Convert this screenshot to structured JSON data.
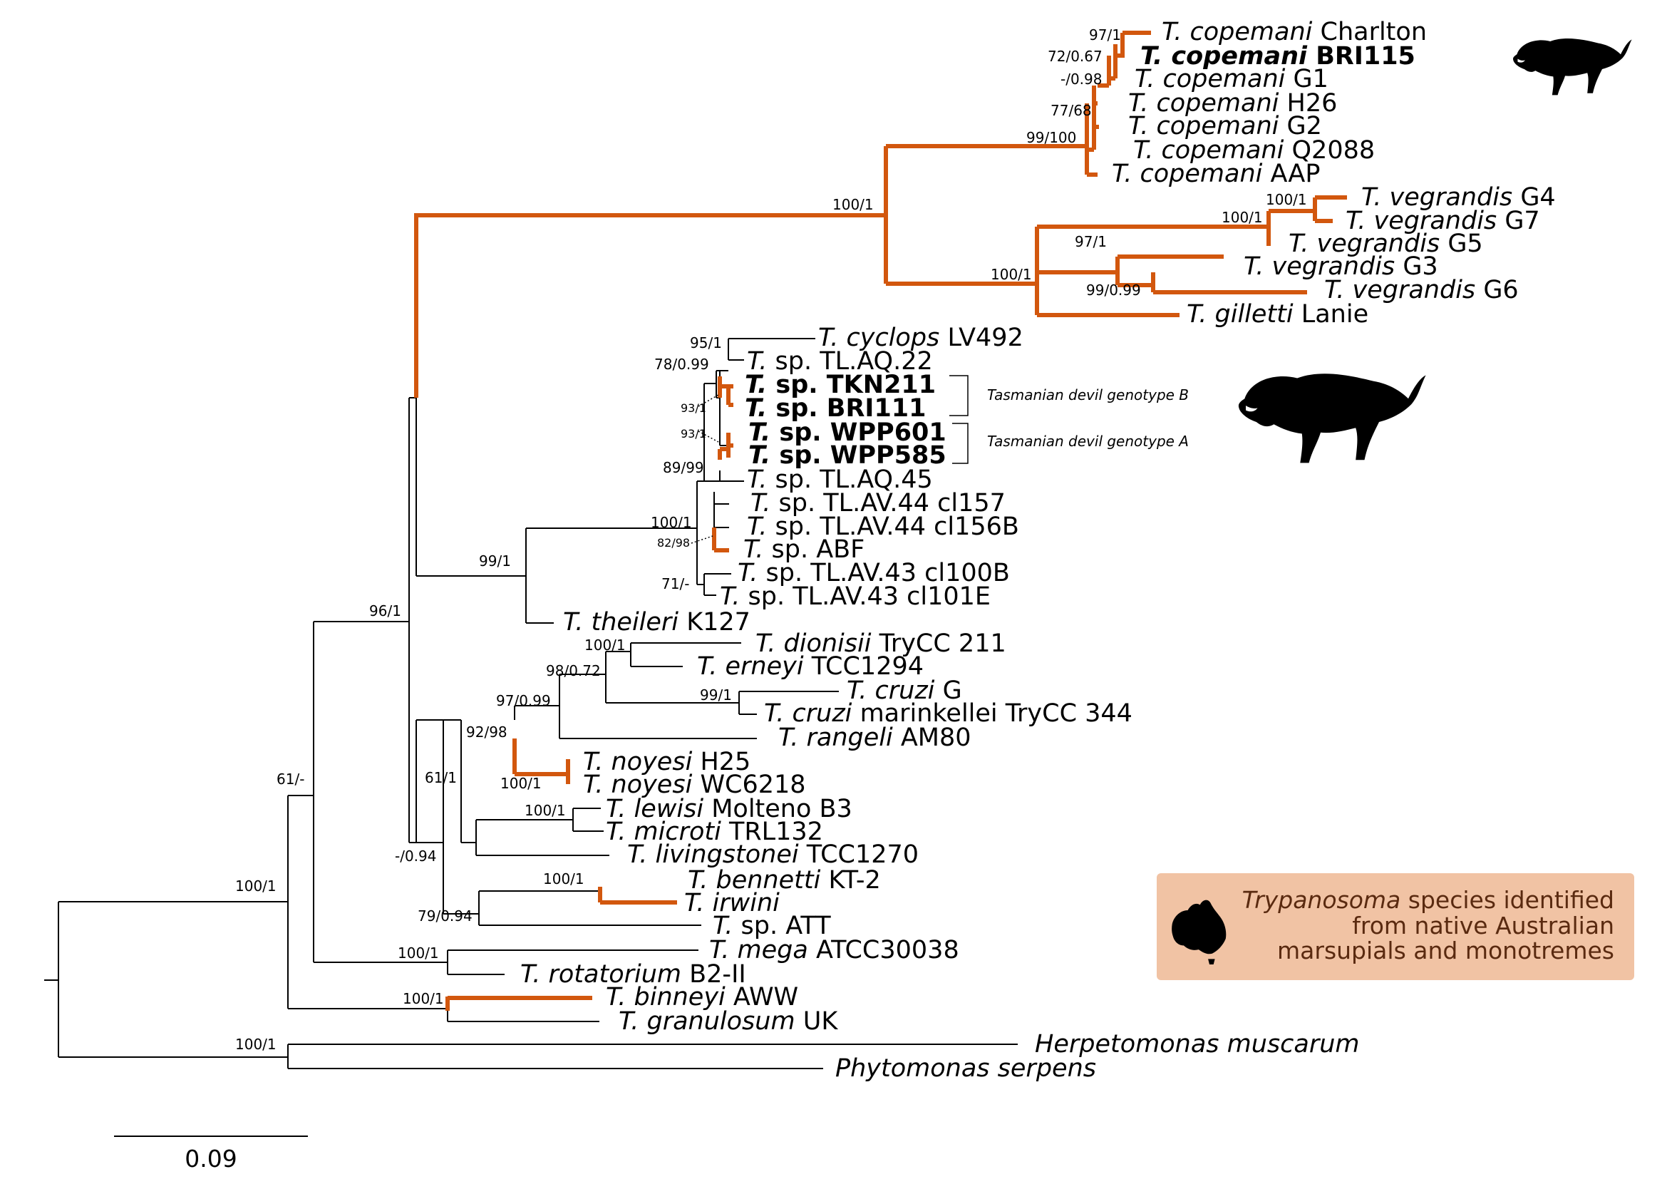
{
  "colors": {
    "highlight": "#d2570e",
    "legend_bg": "#f1c3a4",
    "legend_text": "#5a2a10",
    "branch": "#000000"
  },
  "taxa": {
    "cop_charlton": {
      "genus": "T.",
      "species": "copemani",
      "strain": "Charlton"
    },
    "cop_bri115": {
      "genus": "T.",
      "species": "copemani",
      "strain": "BRI115"
    },
    "cop_g1": {
      "genus": "T.",
      "species": "copemani",
      "strain": "G1"
    },
    "cop_h26": {
      "genus": "T.",
      "species": "copemani",
      "strain": "H26"
    },
    "cop_g2": {
      "genus": "T.",
      "species": "copemani",
      "strain": "G2"
    },
    "cop_q2088": {
      "genus": "T.",
      "species": "copemani",
      "strain": "Q2088"
    },
    "cop_aap": {
      "genus": "T.",
      "species": "copemani",
      "strain": "AAP"
    },
    "veg_g4": {
      "genus": "T.",
      "species": "vegrandis",
      "strain": "G4"
    },
    "veg_g7": {
      "genus": "T.",
      "species": "vegrandis",
      "strain": "G7"
    },
    "veg_g5": {
      "genus": "T.",
      "species": "vegrandis",
      "strain": "G5"
    },
    "veg_g3": {
      "genus": "T.",
      "species": "vegrandis",
      "strain": "G3"
    },
    "veg_g6": {
      "genus": "T.",
      "species": "vegrandis",
      "strain": "G6"
    },
    "gil_lanie": {
      "genus": "T.",
      "species": "gilletti",
      "strain": "Lanie"
    },
    "cyc_lv492": {
      "genus": "T.",
      "species": "cyclops",
      "strain": "LV492"
    },
    "sp_tlaq22": {
      "genus": "T.",
      "species": "",
      "strain": "sp. TL.AQ.22"
    },
    "sp_tkn211": {
      "genus": "T.",
      "species": "",
      "strain": "sp. TKN211"
    },
    "sp_bri111": {
      "genus": "T.",
      "species": "",
      "strain": "sp. BRI111"
    },
    "sp_wpp601": {
      "genus": "T.",
      "species": "",
      "strain": "sp. WPP601"
    },
    "sp_wpp585": {
      "genus": "T.",
      "species": "",
      "strain": "sp. WPP585"
    },
    "sp_tlaq45": {
      "genus": "T.",
      "species": "",
      "strain": "sp. TL.AQ.45"
    },
    "sp_tlav44_157": {
      "genus": "T.",
      "species": "",
      "strain": "sp. TL.AV.44 cl157"
    },
    "sp_tlav44_156b": {
      "genus": "T.",
      "species": "",
      "strain": "sp. TL.AV.44 cl156B"
    },
    "sp_abf": {
      "genus": "T.",
      "species": "",
      "strain": "sp. ABF"
    },
    "sp_tlav43_100b": {
      "genus": "T.",
      "species": "",
      "strain": "sp. TL.AV.43 cl100B"
    },
    "sp_tlav43_101e": {
      "genus": "T.",
      "species": "",
      "strain": "sp. TL.AV.43 cl101E"
    },
    "the_k127": {
      "genus": "T.",
      "species": "theileri",
      "strain": "K127"
    },
    "dio_trycc211": {
      "genus": "T.",
      "species": "dionisii",
      "strain": "TryCC 211"
    },
    "ern_tcc1294": {
      "genus": "T.",
      "species": "erneyi",
      "strain": "TCC1294"
    },
    "cru_g": {
      "genus": "T.",
      "species": "cruzi",
      "strain": "G"
    },
    "cru_mar": {
      "genus": "T.",
      "species": "cruzi",
      "strain": "marinkellei TryCC 344"
    },
    "ran_am80": {
      "genus": "T.",
      "species": "rangeli",
      "strain": "AM80"
    },
    "noy_h25": {
      "genus": "T.",
      "species": "noyesi",
      "strain": "H25"
    },
    "noy_wc6218": {
      "genus": "T.",
      "species": "noyesi",
      "strain": "WC6218"
    },
    "lew_molteno": {
      "genus": "T.",
      "species": "lewisi",
      "strain": "Molteno B3"
    },
    "mic_trl132": {
      "genus": "T.",
      "species": "microti",
      "strain": "TRL132"
    },
    "liv_tcc1270": {
      "genus": "T.",
      "species": "livingstonei",
      "strain": "TCC1270"
    },
    "ben_kt2": {
      "genus": "T.",
      "species": "bennetti",
      "strain": "KT-2"
    },
    "irw": {
      "genus": "T.",
      "species": "irwini",
      "strain": ""
    },
    "sp_att": {
      "genus": "T.",
      "species": "",
      "strain": "sp. ATT"
    },
    "meg_atcc": {
      "genus": "T.",
      "species": "mega",
      "strain": "ATCC30038"
    },
    "rot_b2ii": {
      "genus": "T.",
      "species": "rotatorium",
      "strain": "B2-II"
    },
    "bin_aww": {
      "genus": "T.",
      "species": "binneyi",
      "strain": "AWW"
    },
    "gra_uk": {
      "genus": "T.",
      "species": "granulosum",
      "strain": "UK"
    },
    "her_mus": {
      "genus": "Herpetomonas",
      "species": "muscarum",
      "strain": ""
    },
    "phy_ser": {
      "genus": "Phytomonas",
      "species": "serpens",
      "strain": ""
    }
  },
  "support": {
    "cop_charlton_bri115": "97/1",
    "cop_a": "72/0.67",
    "cop_g1": "-/0.98",
    "cop_h26": "77/68",
    "copemani_clade": "99/100",
    "cop_veg": "100/1",
    "veg_g4_g7": "100/1",
    "veg_g5": "100/1",
    "veg_core": "97/1",
    "veg_g3_g6": "99/0.99",
    "veg_gil": "100/1",
    "cyc_tlaq22": "95/1",
    "cyc_group": "78/0.99",
    "tkn_bri": "93/1",
    "wpp": "93/1",
    "tlaq45_group": "89/99",
    "tlav44": "100/1",
    "abf": "82/98",
    "tlav43": "71/-",
    "theileri_group": "99/1",
    "main_96": "96/1",
    "dio_ern": "100/1",
    "dio_cruzi": "98/0.72",
    "cruzi": "99/1",
    "ran_group": "97/0.99",
    "noy_group": "92/98",
    "noy": "100/1",
    "lew_mic": "100/1",
    "lew_liv": "61/1",
    "mid_094": "-/0.94",
    "ben_irw": "100/1",
    "ben_att": "79/0.94",
    "meg_rot": "100/1",
    "root_61": "61/-",
    "bin_gra": "100/1",
    "trypanosoma": "100/1",
    "outgroup": "100/1"
  },
  "annotations": {
    "genotype_b": "Tasmanian devil genotype B",
    "genotype_a": "Tasmanian devil genotype A"
  },
  "legend": {
    "line1_italic": "Trypanosoma",
    "line1_rest": " species identified",
    "line2": "from native Australian",
    "line3": "marsupials and monotremes"
  },
  "scale_bar": {
    "value": "0.09"
  }
}
